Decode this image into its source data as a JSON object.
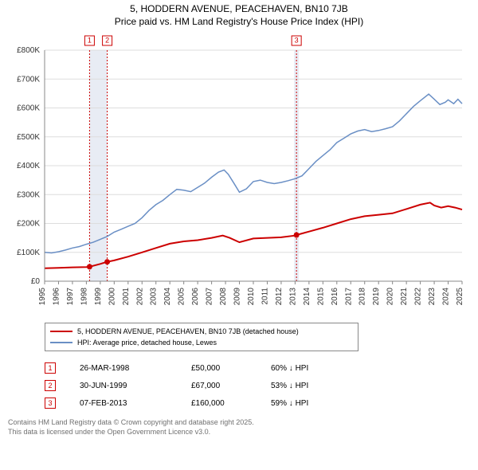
{
  "title_line1": "5, HODDERN AVENUE, PEACEHAVEN, BN10 7JB",
  "title_line2": "Price paid vs. HM Land Registry's House Price Index (HPI)",
  "chart": {
    "type": "line",
    "x_start_year": 1995,
    "x_end_year": 2025,
    "xticks": [
      1995,
      1996,
      1997,
      1998,
      1999,
      2000,
      2001,
      2002,
      2003,
      2004,
      2005,
      2006,
      2007,
      2008,
      2009,
      2010,
      2011,
      2012,
      2013,
      2014,
      2015,
      2016,
      2017,
      2018,
      2019,
      2020,
      2021,
      2022,
      2023,
      2024,
      2025
    ],
    "ylim": [
      0,
      800000
    ],
    "ytick_step": 100000,
    "ytick_labels": [
      "£0",
      "£100K",
      "£200K",
      "£300K",
      "£400K",
      "£500K",
      "£600K",
      "£700K",
      "£800K"
    ],
    "background_color": "#ffffff",
    "grid_color": "#dddddd",
    "axis_color": "#888888",
    "series": [
      {
        "name": "property",
        "color": "#cc0000",
        "width": 2,
        "points": [
          [
            1995.0,
            45000
          ],
          [
            1996.0,
            46000
          ],
          [
            1997.0,
            48000
          ],
          [
            1998.0,
            49000
          ],
          [
            1998.23,
            50000
          ],
          [
            1999.0,
            60000
          ],
          [
            1999.5,
            67000
          ],
          [
            2000.0,
            72000
          ],
          [
            2001.0,
            85000
          ],
          [
            2002.0,
            100000
          ],
          [
            2003.0,
            115000
          ],
          [
            2004.0,
            130000
          ],
          [
            2005.0,
            138000
          ],
          [
            2006.0,
            142000
          ],
          [
            2007.0,
            150000
          ],
          [
            2007.8,
            158000
          ],
          [
            2008.3,
            150000
          ],
          [
            2009.0,
            135000
          ],
          [
            2010.0,
            148000
          ],
          [
            2011.0,
            150000
          ],
          [
            2012.0,
            152000
          ],
          [
            2013.0,
            158000
          ],
          [
            2013.1,
            160000
          ],
          [
            2014.0,
            172000
          ],
          [
            2015.0,
            185000
          ],
          [
            2016.0,
            200000
          ],
          [
            2017.0,
            215000
          ],
          [
            2018.0,
            225000
          ],
          [
            2019.0,
            230000
          ],
          [
            2020.0,
            235000
          ],
          [
            2021.0,
            250000
          ],
          [
            2022.0,
            265000
          ],
          [
            2022.7,
            272000
          ],
          [
            2023.0,
            262000
          ],
          [
            2023.5,
            255000
          ],
          [
            2024.0,
            260000
          ],
          [
            2024.5,
            255000
          ],
          [
            2025.0,
            248000
          ]
        ]
      },
      {
        "name": "hpi",
        "color": "#6a8fc5",
        "width": 1.5,
        "points": [
          [
            1995.0,
            100000
          ],
          [
            1995.5,
            98000
          ],
          [
            1996.0,
            102000
          ],
          [
            1996.5,
            108000
          ],
          [
            1997.0,
            115000
          ],
          [
            1997.5,
            120000
          ],
          [
            1998.0,
            128000
          ],
          [
            1998.5,
            135000
          ],
          [
            1999.0,
            145000
          ],
          [
            1999.5,
            155000
          ],
          [
            2000.0,
            170000
          ],
          [
            2000.5,
            180000
          ],
          [
            2001.0,
            190000
          ],
          [
            2001.5,
            200000
          ],
          [
            2002.0,
            220000
          ],
          [
            2002.5,
            245000
          ],
          [
            2003.0,
            265000
          ],
          [
            2003.5,
            280000
          ],
          [
            2004.0,
            300000
          ],
          [
            2004.5,
            318000
          ],
          [
            2005.0,
            315000
          ],
          [
            2005.5,
            310000
          ],
          [
            2006.0,
            325000
          ],
          [
            2006.5,
            340000
          ],
          [
            2007.0,
            360000
          ],
          [
            2007.5,
            378000
          ],
          [
            2007.9,
            385000
          ],
          [
            2008.2,
            370000
          ],
          [
            2008.6,
            340000
          ],
          [
            2009.0,
            308000
          ],
          [
            2009.5,
            320000
          ],
          [
            2010.0,
            345000
          ],
          [
            2010.5,
            350000
          ],
          [
            2011.0,
            342000
          ],
          [
            2011.5,
            338000
          ],
          [
            2012.0,
            342000
          ],
          [
            2012.5,
            348000
          ],
          [
            2013.0,
            355000
          ],
          [
            2013.5,
            365000
          ],
          [
            2014.0,
            390000
          ],
          [
            2014.5,
            415000
          ],
          [
            2015.0,
            435000
          ],
          [
            2015.5,
            455000
          ],
          [
            2016.0,
            480000
          ],
          [
            2016.5,
            495000
          ],
          [
            2017.0,
            510000
          ],
          [
            2017.5,
            520000
          ],
          [
            2018.0,
            525000
          ],
          [
            2018.5,
            518000
          ],
          [
            2019.0,
            522000
          ],
          [
            2019.5,
            528000
          ],
          [
            2020.0,
            535000
          ],
          [
            2020.5,
            555000
          ],
          [
            2021.0,
            580000
          ],
          [
            2021.5,
            605000
          ],
          [
            2022.0,
            625000
          ],
          [
            2022.6,
            648000
          ],
          [
            2023.0,
            630000
          ],
          [
            2023.4,
            612000
          ],
          [
            2023.8,
            620000
          ],
          [
            2024.0,
            628000
          ],
          [
            2024.4,
            615000
          ],
          [
            2024.7,
            630000
          ],
          [
            2025.0,
            615000
          ]
        ]
      }
    ],
    "sale_markers": [
      {
        "n": "1",
        "year": 1998.23,
        "price": 50000
      },
      {
        "n": "2",
        "year": 1999.5,
        "price": 67000
      },
      {
        "n": "3",
        "year": 2013.1,
        "price": 160000
      }
    ],
    "vline_color": "#cc0000",
    "vband_color": "#e8ecf4"
  },
  "legend": {
    "items": [
      {
        "color": "#cc0000",
        "label": "5, HODDERN AVENUE, PEACEHAVEN, BN10 7JB (detached house)"
      },
      {
        "color": "#6a8fc5",
        "label": "HPI: Average price, detached house, Lewes"
      }
    ]
  },
  "sales": [
    {
      "n": "1",
      "date": "26-MAR-1998",
      "price": "£50,000",
      "delta": "60% ↓ HPI"
    },
    {
      "n": "2",
      "date": "30-JUN-1999",
      "price": "£67,000",
      "delta": "53% ↓ HPI"
    },
    {
      "n": "3",
      "date": "07-FEB-2013",
      "price": "£160,000",
      "delta": "59% ↓ HPI"
    }
  ],
  "footer_line1": "Contains HM Land Registry data © Crown copyright and database right 2025.",
  "footer_line2": "This data is licensed under the Open Government Licence v3.0."
}
